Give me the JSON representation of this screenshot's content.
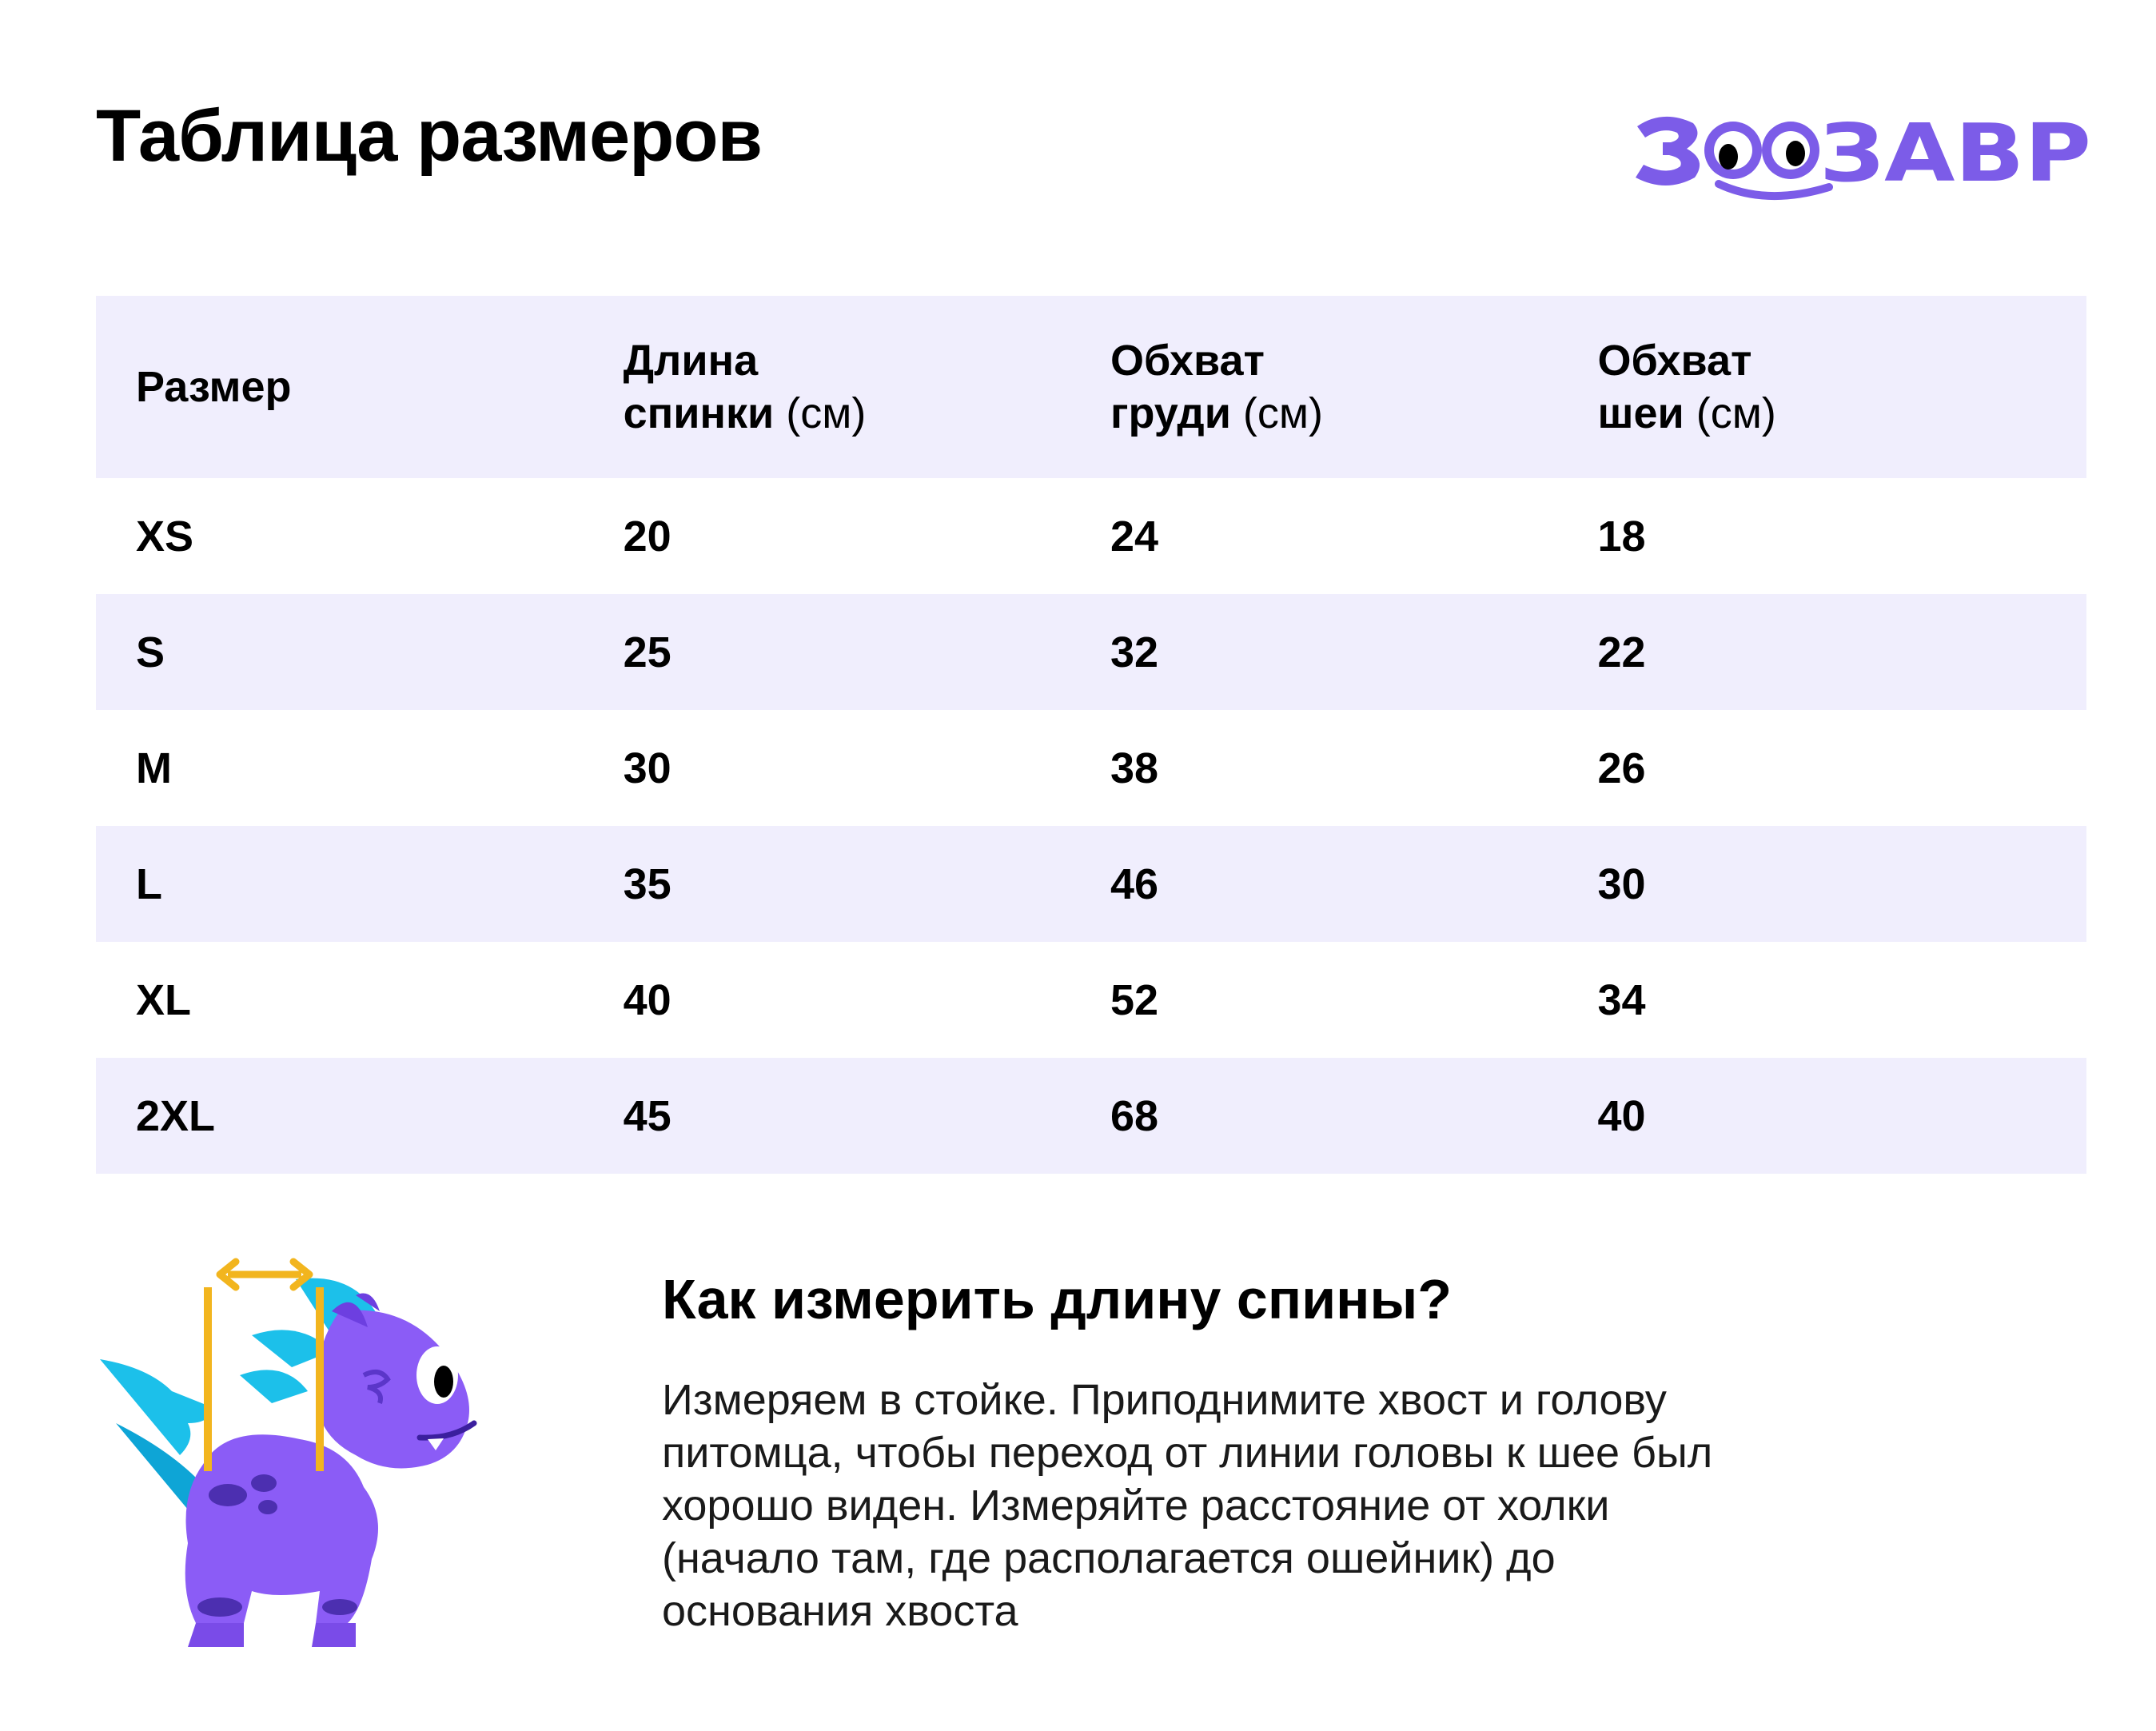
{
  "header": {
    "title": "Таблица размеров",
    "logo_text": "ЗООЗАВР"
  },
  "colors": {
    "brand_purple": "#7c5ce8",
    "row_shade": "#f0eefd",
    "mascot_body": "#8b5cf6",
    "mascot_spikes": "#1cc0ea",
    "measure_line": "#f2b51e"
  },
  "table": {
    "headers": [
      {
        "line1": "Размер",
        "line2": "",
        "unit": ""
      },
      {
        "line1": "Длина",
        "line2": "спинки",
        "unit": "(см)"
      },
      {
        "line1": "Обхват",
        "line2": "груди",
        "unit": "(см)"
      },
      {
        "line1": "Обхват",
        "line2": "шеи",
        "unit": "(см)"
      }
    ],
    "rows": [
      [
        "XS",
        "20",
        "24",
        "18"
      ],
      [
        "S",
        "25",
        "32",
        "22"
      ],
      [
        "M",
        "30",
        "38",
        "26"
      ],
      [
        "L",
        "35",
        "46",
        "30"
      ],
      [
        "XL",
        "40",
        "52",
        "34"
      ],
      [
        "2XL",
        "45",
        "68",
        "40"
      ]
    ]
  },
  "info": {
    "title": "Как измерить длину спины?",
    "lines": [
      "Измеряем в стойке. Приподнимите хвост и голову",
      "питомца, чтобы переход от линии головы к шее был",
      "хорошо виден. Измеряйте расстояние от холки",
      "(начало там, где располагается ошейник) до",
      "основания хвоста"
    ]
  },
  "icons": {
    "mascot": "dinosaur-mascot-icon",
    "measure": "double-arrow-icon"
  }
}
